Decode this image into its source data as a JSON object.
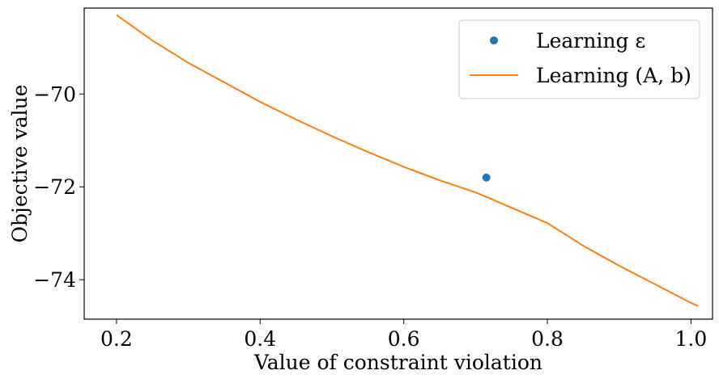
{
  "chart_data": {
    "type": "line",
    "title": "",
    "xlabel": "Value of constraint violation",
    "ylabel": "Objective value",
    "xlim": [
      0.155,
      1.03
    ],
    "ylim": [
      -74.85,
      -68.15
    ],
    "xticks": [
      0.2,
      0.4,
      0.6,
      0.8,
      1.0
    ],
    "xtick_labels": [
      "0.2",
      "0.4",
      "0.6",
      "0.8",
      "1.0"
    ],
    "yticks": [
      -70,
      -72,
      -74
    ],
    "ytick_labels": [
      "−70",
      "−72",
      "−74"
    ],
    "grid": false,
    "legend_position": "top-right",
    "series": [
      {
        "name": "Learning ε",
        "kind": "scatter",
        "color": "#1f77b4",
        "x": [
          0.715
        ],
        "y": [
          -71.8
        ]
      },
      {
        "name": "Learning (A, b)",
        "kind": "line",
        "color": "#ff7f0e",
        "x": [
          0.2,
          0.25,
          0.3,
          0.35,
          0.4,
          0.45,
          0.5,
          0.55,
          0.6,
          0.65,
          0.7,
          0.72,
          0.75,
          0.8,
          0.85,
          0.9,
          0.95,
          1.0,
          1.01
        ],
        "y": [
          -68.3,
          -68.85,
          -69.33,
          -69.75,
          -70.17,
          -70.55,
          -70.91,
          -71.25,
          -71.57,
          -71.86,
          -72.12,
          -72.25,
          -72.45,
          -72.78,
          -73.27,
          -73.7,
          -74.1,
          -74.5,
          -74.57
        ]
      }
    ]
  }
}
